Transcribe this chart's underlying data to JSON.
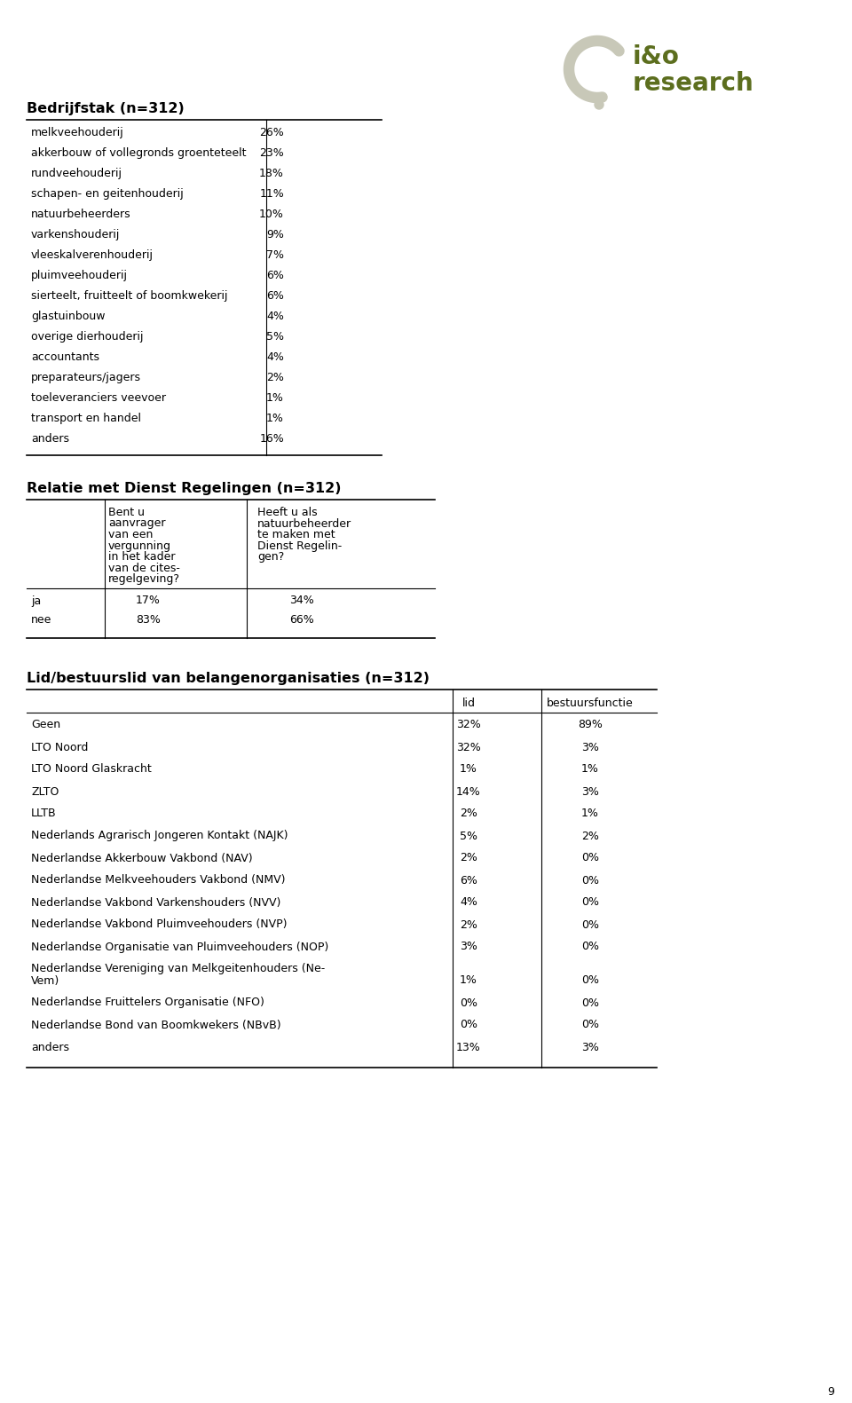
{
  "title1": "Bedrijfstak (n=312)",
  "table1_rows": [
    [
      "melkveehouderij",
      "26%"
    ],
    [
      "akkerbouw of vollegronds groenteteelt",
      "23%"
    ],
    [
      "rundveehouderij",
      "18%"
    ],
    [
      "schapen- en geitenhouderij",
      "11%"
    ],
    [
      "natuurbeheerders",
      "10%"
    ],
    [
      "varkenshouderij",
      "9%"
    ],
    [
      "vleeskalverenhouderij",
      "7%"
    ],
    [
      "pluimveehouderij",
      "6%"
    ],
    [
      "sierteelt, fruitteelt of boomkwekerij",
      "6%"
    ],
    [
      "glastuinbouw",
      "4%"
    ],
    [
      "overige dierhouderij",
      "5%"
    ],
    [
      "accountants",
      "4%"
    ],
    [
      "preparateurs/jagers",
      "2%"
    ],
    [
      "toeleveranciers veevoer",
      "1%"
    ],
    [
      "transport en handel",
      "1%"
    ],
    [
      "anders",
      "16%"
    ]
  ],
  "title2": "Relatie met Dienst Regelingen (n=312)",
  "table2_col1_header_lines": [
    "Bent u",
    "aanvrager",
    "van een",
    "vergunning",
    "in het kader",
    "van de cites-",
    "regelgeving?"
  ],
  "table2_col2_header_lines": [
    "Heeft u als",
    "natuurbeheerder",
    "te maken met",
    "Dienst Regelin-",
    "gen?"
  ],
  "table2_rows": [
    [
      "ja",
      "17%",
      "34%"
    ],
    [
      "nee",
      "83%",
      "66%"
    ]
  ],
  "title3": "Lid/bestuurslid van belangenorganisaties (n=312)",
  "table3_col_headers": [
    "lid",
    "bestuursfunctie"
  ],
  "table3_rows": [
    [
      "Geen",
      "32%",
      "89%"
    ],
    [
      "LTO Noord",
      "32%",
      "3%"
    ],
    [
      "LTO Noord Glaskracht",
      "1%",
      "1%"
    ],
    [
      "ZLTO",
      "14%",
      "3%"
    ],
    [
      "LLTB",
      "2%",
      "1%"
    ],
    [
      "Nederlands Agrarisch Jongeren Kontakt (NAJK)",
      "5%",
      "2%"
    ],
    [
      "Nederlandse Akkerbouw Vakbond (NAV)",
      "2%",
      "0%"
    ],
    [
      "Nederlandse Melkveehouders Vakbond (NMV)",
      "6%",
      "0%"
    ],
    [
      "Nederlandse Vakbond Varkenshouders (NVV)",
      "4%",
      "0%"
    ],
    [
      "Nederlandse Vakbond Pluimveehouders (NVP)",
      "2%",
      "0%"
    ],
    [
      "Nederlandse Organisatie van Pluimveehouders (NOP)",
      "3%",
      "0%"
    ],
    [
      "Nederlandse Vereniging van Melkgeitenhouders (Ne-Vem)",
      "1%",
      "0%"
    ],
    [
      "Nederlandse Fruittelers Organisatie (NFO)",
      "0%",
      "0%"
    ],
    [
      "Nederlandse Bond van Boomkwekers (NBvB)",
      "0%",
      "0%"
    ],
    [
      "anders",
      "13%",
      "3%"
    ]
  ],
  "page_number": "9",
  "bg_color": "#ffffff",
  "text_color": "#000000",
  "body_font_size": 9.0,
  "title_font_size": 11.5,
  "logo_text_color": "#5c6e1e",
  "logo_arc_color": "#c8c8b8"
}
